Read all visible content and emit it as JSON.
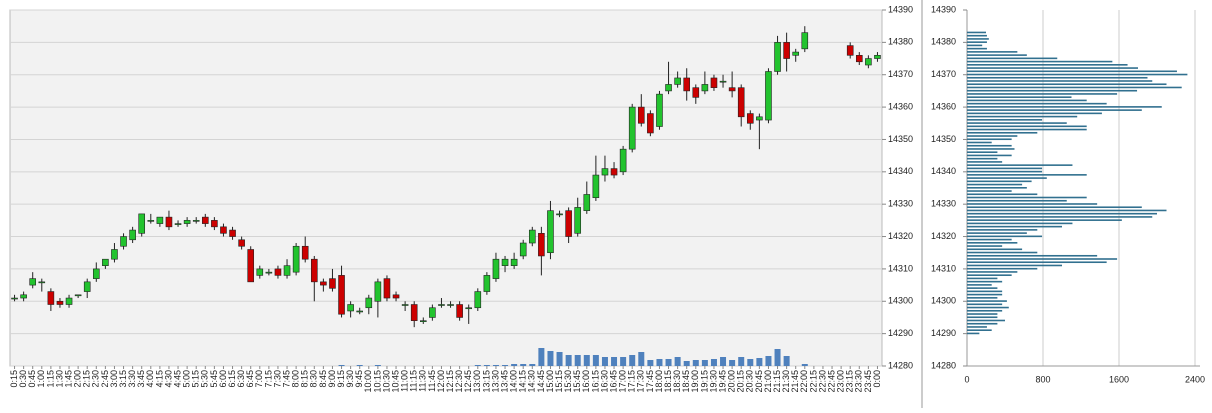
{
  "chart_data": [
    {
      "type": "candlestick",
      "categories": [
        "0:15",
        "0:30",
        "0:45",
        "1:00",
        "1:15",
        "1:30",
        "1:45",
        "2:00",
        "2:15",
        "2:30",
        "2:45",
        "3:00",
        "3:15",
        "3:30",
        "3:45",
        "4:00",
        "4:15",
        "4:30",
        "4:45",
        "5:00",
        "5:15",
        "5:30",
        "5:45",
        "6:00",
        "6:15",
        "6:30",
        "6:45",
        "7:00",
        "7:15",
        "7:30",
        "7:45",
        "8:00",
        "8:15",
        "8:30",
        "8:45",
        "9:00",
        "9:15",
        "9:30",
        "9:45",
        "10:00",
        "10:15",
        "10:30",
        "10:45",
        "11:00",
        "11:15",
        "11:30",
        "11:45",
        "12:00",
        "12:15",
        "12:30",
        "12:45",
        "13:00",
        "13:15",
        "13:30",
        "13:45",
        "14:00",
        "14:15",
        "14:30",
        "14:45",
        "15:00",
        "15:15",
        "15:30",
        "15:45",
        "16:00",
        "16:15",
        "16:30",
        "16:45",
        "17:00",
        "17:15",
        "17:30",
        "17:45",
        "18:00",
        "18:15",
        "18:30",
        "18:45",
        "19:00",
        "19:15",
        "19:30",
        "19:45",
        "20:00",
        "20:15",
        "20:30",
        "20:45",
        "21:00",
        "21:15",
        "21:30",
        "21:45",
        "22:00",
        "22:15",
        "22:30",
        "22:45",
        "23:00",
        "23:15",
        "23:30",
        "23:45",
        "0:00"
      ],
      "open": [
        14301,
        14301,
        14305,
        14306,
        14303,
        14300,
        14299,
        14302,
        14303,
        14307,
        14311,
        14313,
        14317,
        14319,
        14321,
        14325,
        14324,
        14326,
        14324,
        14324,
        14325,
        14326,
        14325,
        14323,
        14322,
        14319,
        14316,
        14308,
        14309,
        14310,
        14308,
        14309,
        14317,
        14313,
        14306,
        14307,
        14308,
        14297,
        14297,
        14298,
        14300,
        14307,
        14302,
        14299,
        14299,
        14294,
        14295,
        14299,
        14299,
        14299,
        14298,
        14298,
        14303,
        14307,
        14311,
        14311,
        14314,
        14318,
        14321,
        14315,
        14327,
        14328,
        14321,
        14328,
        14332,
        14339,
        14341,
        14340,
        14347,
        14360,
        14358,
        14354,
        14365,
        14367,
        14369,
        14366,
        14365,
        14369,
        14368,
        14366,
        14366,
        14358,
        14356,
        14356,
        14371,
        14380,
        14376,
        14378,
        null,
        null,
        null,
        null,
        14379,
        14376,
        14373,
        14375
      ],
      "high": [
        14302,
        14303,
        14309,
        14307,
        14304,
        14301,
        14302,
        14302,
        14307,
        14312,
        14313,
        14318,
        14321,
        14323,
        14327,
        14327,
        14326,
        14328,
        14325,
        14326,
        14326,
        14327,
        14326,
        14324,
        14323,
        14320,
        14317,
        14311,
        14310,
        14311,
        14313,
        14318,
        14320,
        14314,
        14307,
        14310,
        14311,
        14300,
        14298,
        14302,
        14307,
        14308,
        14303,
        14300,
        14300,
        14295,
        14299,
        14301,
        14300,
        14300,
        14299,
        14304,
        14309,
        14315,
        14314,
        14315,
        14319,
        14323,
        14323,
        14331,
        14328,
        14329,
        14332,
        14337,
        14345,
        14345,
        14343,
        14348,
        14361,
        14364,
        14359,
        14365,
        14374,
        14371,
        14372,
        14367,
        14371,
        14370,
        14370,
        14371,
        14367,
        14359,
        14358,
        14372,
        14382,
        14383,
        14378,
        14385,
        null,
        null,
        null,
        null,
        14380,
        14377,
        14376,
        14377
      ],
      "low": [
        14300,
        14300,
        14304,
        14303,
        14297,
        14298,
        14298,
        14301,
        14301,
        14306,
        14310,
        14312,
        14316,
        14318,
        14320,
        14324,
        14323,
        14322,
        14323,
        14323,
        14324,
        14323,
        14322,
        14320,
        14319,
        14316,
        14306,
        14307,
        14308,
        14307,
        14307,
        14308,
        14312,
        14300,
        14303,
        14303,
        14295,
        14295,
        14296,
        14296,
        14295,
        14300,
        14300,
        14297,
        14292,
        14293,
        14294,
        14298,
        14298,
        14294,
        14293,
        14297,
        14302,
        14306,
        14309,
        14310,
        14313,
        14317,
        14308,
        14313,
        14326,
        14318,
        14320,
        14327,
        14331,
        14337,
        14338,
        14339,
        14346,
        14354,
        14351,
        14353,
        14364,
        14366,
        14362,
        14361,
        14364,
        14365,
        14366,
        14363,
        14354,
        14353,
        14347,
        14355,
        14370,
        14371,
        14374,
        14377,
        null,
        null,
        null,
        null,
        14375,
        14373,
        14372,
        14374
      ],
      "close": [
        14301,
        14302,
        14307,
        14306,
        14299,
        14299,
        14301,
        14302,
        14306,
        14310,
        14313,
        14316,
        14320,
        14322,
        14327,
        14325,
        14326,
        14323,
        14324,
        14325,
        14325,
        14324,
        14323,
        14321,
        14320,
        14317,
        14306,
        14310,
        14309,
        14308,
        14311,
        14317,
        14313,
        14306,
        14305,
        14304,
        14296,
        14299,
        14297,
        14301,
        14306,
        14301,
        14301,
        14299,
        14294,
        14294,
        14298,
        14299,
        14299,
        14295,
        14298,
        14303,
        14308,
        14313,
        14313,
        14313,
        14318,
        14322,
        14314,
        14328,
        14327,
        14320,
        14329,
        14333,
        14339,
        14341,
        14339,
        14347,
        14360,
        14355,
        14352,
        14364,
        14367,
        14369,
        14365,
        14363,
        14367,
        14366,
        14368,
        14365,
        14357,
        14355,
        14357,
        14371,
        14380,
        14375,
        14377,
        14383,
        null,
        null,
        null,
        null,
        14376,
        14374,
        14375,
        14376
      ],
      "volume": [
        0,
        0,
        0,
        0,
        0,
        0,
        0,
        0,
        0,
        0,
        0,
        0,
        0,
        0,
        0,
        0,
        0,
        0,
        0,
        0,
        0,
        0,
        0,
        0,
        0,
        0,
        0,
        0,
        0,
        0,
        0,
        0,
        0,
        0,
        0,
        0,
        1,
        0,
        1,
        0,
        1,
        0,
        0,
        0,
        0,
        0,
        0,
        0,
        0,
        0,
        0,
        1,
        1,
        1,
        1,
        2,
        2,
        2,
        18,
        15,
        14,
        11,
        11,
        11,
        11,
        9,
        9,
        9,
        11,
        14,
        6,
        7,
        7,
        9,
        5,
        6,
        6,
        7,
        9,
        6,
        9,
        7,
        8,
        10,
        17,
        10,
        0,
        2,
        null,
        null,
        null,
        null,
        0,
        0,
        0,
        0
      ],
      "up_color": "#22c32e",
      "down_color": "#cc0000",
      "volume_color": "#4f81bd",
      "ylim": [
        14280,
        14390
      ],
      "yticks": [
        14280,
        14290,
        14300,
        14310,
        14320,
        14330,
        14340,
        14350,
        14360,
        14370,
        14380,
        14390
      ],
      "volume_ylim": [
        0,
        100
      ],
      "grid": true
    },
    {
      "type": "barh",
      "y": [
        14383,
        14382,
        14381,
        14380,
        14379,
        14378,
        14377,
        14376,
        14375,
        14374,
        14373,
        14372,
        14371,
        14370,
        14369,
        14368,
        14367,
        14366,
        14365,
        14364,
        14363,
        14362,
        14361,
        14360,
        14359,
        14358,
        14357,
        14356,
        14355,
        14354,
        14353,
        14352,
        14351,
        14350,
        14349,
        14348,
        14347,
        14346,
        14345,
        14344,
        14343,
        14342,
        14341,
        14340,
        14339,
        14338,
        14337,
        14336,
        14335,
        14334,
        14333,
        14332,
        14331,
        14330,
        14329,
        14328,
        14327,
        14326,
        14325,
        14324,
        14323,
        14322,
        14321,
        14320,
        14319,
        14318,
        14317,
        14316,
        14315,
        14314,
        14313,
        14312,
        14311,
        14310,
        14309,
        14308,
        14307,
        14306,
        14305,
        14304,
        14303,
        14302,
        14301,
        14300,
        14299,
        14298,
        14297,
        14296,
        14295,
        14294,
        14293,
        14292,
        14291,
        14290
      ],
      "values": [
        200,
        210,
        230,
        210,
        160,
        210,
        530,
        630,
        950,
        1530,
        1690,
        1800,
        2210,
        2320,
        1900,
        1950,
        2100,
        2260,
        1790,
        1580,
        1100,
        1260,
        1470,
        2050,
        1840,
        1420,
        1160,
        790,
        1050,
        1260,
        1260,
        740,
        530,
        470,
        260,
        470,
        500,
        320,
        470,
        320,
        370,
        1110,
        790,
        790,
        1260,
        840,
        680,
        580,
        630,
        470,
        740,
        1260,
        1050,
        1370,
        1840,
        2100,
        2000,
        1950,
        1630,
        1110,
        1000,
        740,
        630,
        790,
        470,
        530,
        370,
        580,
        740,
        1370,
        1580,
        1470,
        1000,
        740,
        530,
        470,
        320,
        370,
        260,
        320,
        370,
        370,
        320,
        420,
        370,
        440,
        370,
        320,
        320,
        400,
        320,
        210,
        260,
        130
      ],
      "color": "#31708f",
      "ylim": [
        14280,
        14390
      ],
      "yticks": [
        14280,
        14290,
        14300,
        14310,
        14320,
        14330,
        14340,
        14350,
        14360,
        14370,
        14380,
        14390
      ],
      "xlim": [
        0,
        2400
      ],
      "xticks": [
        0,
        800,
        1600,
        2400
      ],
      "grid": true
    }
  ]
}
